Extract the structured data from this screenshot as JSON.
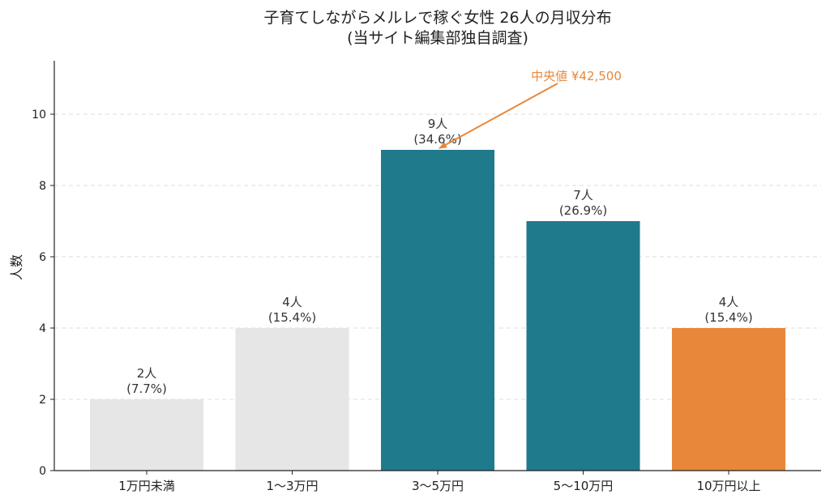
{
  "chart_data": {
    "type": "bar",
    "title_line1": "子育てしながらメルレで稼ぐ女性 26人の月収分布",
    "title_line2": "(当サイト編集部独自調査)",
    "ylabel": "人数",
    "xlabel": "",
    "ylim": [
      0,
      11.5
    ],
    "yticks": [
      0,
      2,
      4,
      6,
      8,
      10
    ],
    "grid": "horizontal-dashed",
    "categories": [
      "1万円未満",
      "1〜3万円",
      "3〜5万円",
      "5〜10万円",
      "10万円以上"
    ],
    "values": [
      2,
      4,
      9,
      7,
      4
    ],
    "data_labels": [
      {
        "count": "2人",
        "pct": "(7.7%)"
      },
      {
        "count": "4人",
        "pct": "(15.4%)"
      },
      {
        "count": "9人",
        "pct": "(34.6%)"
      },
      {
        "count": "7人",
        "pct": "(26.9%)"
      },
      {
        "count": "4人",
        "pct": "(15.4%)"
      }
    ],
    "bar_colors": [
      "#e6e6e6",
      "#e6e6e6",
      "#1f7a8c",
      "#1f7a8c",
      "#e8873a"
    ],
    "annotation": {
      "text": "中央値 ¥42,500",
      "color": "#e8873a",
      "points_to_category": "3〜5万円"
    }
  }
}
